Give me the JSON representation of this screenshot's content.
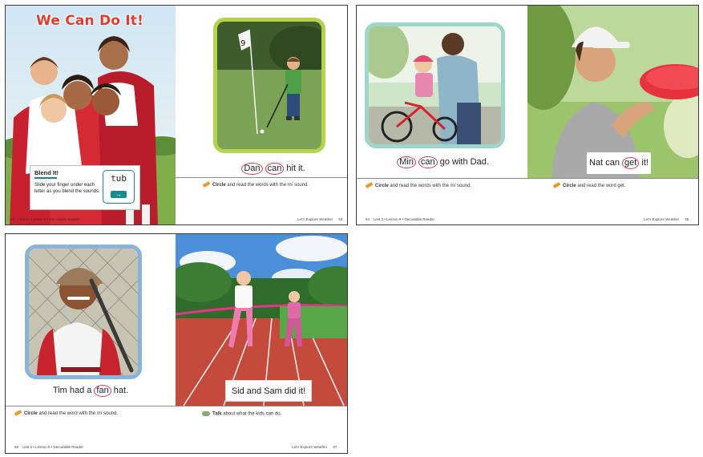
{
  "spread1": {
    "title": "We Can Do It!",
    "blend_box": {
      "heading": "Blend It!",
      "text": "Slide your finger under each letter as you blend the sounds.",
      "word": "tub"
    },
    "caption": {
      "w1": "Dan",
      "w2": "can",
      "w3": "hit it."
    },
    "instruction": {
      "bold": "Circle",
      "rest": " and read the words with the /n/ sound."
    },
    "footer_left": {
      "page": "62",
      "text": "Unit 3 • Lesson 9 • Decodable Reader"
    },
    "footer_right": {
      "text": "Let’s Explore Weather",
      "page": "63"
    },
    "flag_text": "9"
  },
  "spread2": {
    "caption_left": {
      "w1": "Min",
      "w2": "can",
      "w3": "go with Dad."
    },
    "caption_right": {
      "w1": "Nat can ",
      "w2": "get",
      "w3": " it!"
    },
    "instruction_left": {
      "bold": "Circle",
      "rest": " and read the words with the /n/ sound."
    },
    "instruction_right": {
      "bold": "Circle",
      "rest": " and read the word get."
    },
    "footer_left": {
      "page": "64",
      "text": "Unit 3 • Lesson 9 • Decodable Reader"
    },
    "footer_right": {
      "text": "Let’s Explore Weather",
      "page": "65"
    }
  },
  "spread3": {
    "caption_left": {
      "w1": "Tim had a ",
      "w2": "fan",
      "w3": " hat."
    },
    "caption_right": "Sid and Sam did it!",
    "instruction_left": {
      "bold": "Circle",
      "rest": " and read the word with the /n/ sound."
    },
    "instruction_right": {
      "bold": "Talk",
      "rest": " about what the kids can do."
    },
    "footer_left": {
      "page": "66",
      "text": "Unit 3 • Lesson 9 • Decodable Reader"
    },
    "footer_right": {
      "text": "Let’s Explore Weather",
      "page": "67"
    }
  }
}
